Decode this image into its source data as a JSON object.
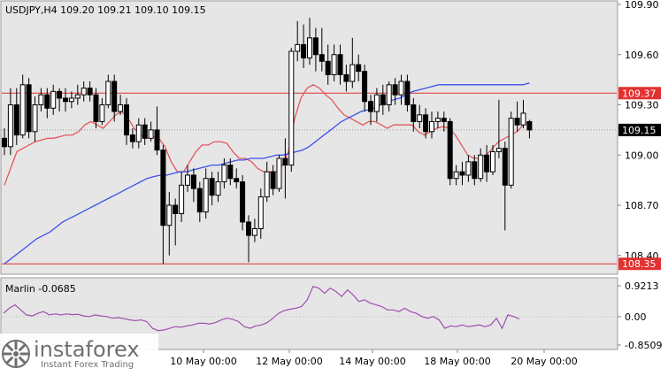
{
  "header": {
    "symbol_info": "USDJPY,H4  109.20 109.21 109.10 109.15"
  },
  "watermark": {
    "brand": "instaforex",
    "tagline": "Instant Forex Trading"
  },
  "colors": {
    "background": "#e6e6e6",
    "candle_body": "#000000",
    "level_line": "#e23131",
    "level_label_bg": "#e23131",
    "ma_fast": "#e2595d",
    "ma_slow": "#3d4fe8",
    "marlin": "#a34eb3",
    "price_label_bg": "#000000"
  },
  "chart_data": [
    {
      "type": "candlestick",
      "title": "USDJPY,H4",
      "ohlc_last": {
        "open": 109.2,
        "high": 109.21,
        "low": 109.1,
        "close": 109.15
      },
      "ylim": [
        108.33,
        109.9
      ],
      "y_ticks": [
        "109.90",
        "109.60",
        "109.30",
        "109.00",
        "108.70",
        "108.40"
      ],
      "x_ticks": [
        "10 May 00:00",
        "12 May 00:00",
        "14 May 00:00",
        "18 May 00:00",
        "20 May 00:00"
      ],
      "levels": [
        {
          "value": 109.37,
          "label": "109.37"
        },
        {
          "value": 108.35,
          "label": "108.35"
        }
      ],
      "current_price": {
        "value": 109.15,
        "label": "109.15"
      },
      "candles": [
        [
          109.1,
          109.05,
          109.16,
          109.0
        ],
        [
          109.05,
          109.3,
          109.4,
          109.0
        ],
        [
          109.3,
          109.12,
          109.4,
          109.06
        ],
        [
          109.12,
          109.42,
          109.48,
          109.1
        ],
        [
          109.42,
          109.14,
          109.46,
          109.1
        ],
        [
          109.14,
          109.3,
          109.35,
          109.08
        ],
        [
          109.3,
          109.36,
          109.4,
          109.26
        ],
        [
          109.36,
          109.28,
          109.4,
          109.22
        ],
        [
          109.28,
          109.38,
          109.42,
          109.24
        ],
        [
          109.38,
          109.34,
          109.4,
          109.26
        ],
        [
          109.34,
          109.32,
          109.4,
          109.26
        ],
        [
          109.32,
          109.34,
          109.38,
          109.28
        ],
        [
          109.34,
          109.36,
          109.42,
          109.3
        ],
        [
          109.36,
          109.4,
          109.44,
          109.32
        ],
        [
          109.4,
          109.36,
          109.44,
          109.32
        ],
        [
          109.36,
          109.2,
          109.4,
          109.16
        ],
        [
          109.2,
          109.3,
          109.34,
          109.18
        ],
        [
          109.3,
          109.44,
          109.48,
          109.28
        ],
        [
          109.44,
          109.26,
          109.48,
          109.2
        ],
        [
          109.26,
          109.3,
          109.36,
          109.24
        ],
        [
          109.3,
          109.12,
          109.34,
          109.06
        ],
        [
          109.12,
          109.08,
          109.16,
          109.04
        ],
        [
          109.08,
          109.18,
          109.22,
          109.04
        ],
        [
          109.18,
          109.1,
          109.22,
          109.06
        ],
        [
          109.1,
          109.15,
          109.2,
          109.08
        ],
        [
          109.15,
          109.03,
          109.29,
          109.0
        ],
        [
          109.03,
          108.58,
          109.06,
          108.35
        ],
        [
          108.58,
          108.7,
          108.78,
          108.4
        ],
        [
          108.7,
          108.65,
          108.74,
          108.46
        ],
        [
          108.65,
          108.82,
          108.9,
          108.6
        ],
        [
          108.82,
          108.88,
          108.94,
          108.78
        ],
        [
          108.88,
          108.8,
          108.92,
          108.72
        ],
        [
          108.8,
          108.66,
          108.84,
          108.6
        ],
        [
          108.66,
          108.86,
          108.92,
          108.62
        ],
        [
          108.86,
          108.76,
          108.9,
          108.7
        ],
        [
          108.76,
          108.84,
          108.9,
          108.72
        ],
        [
          108.84,
          108.94,
          108.98,
          108.8
        ],
        [
          108.94,
          108.86,
          108.98,
          108.82
        ],
        [
          108.86,
          108.84,
          108.92,
          108.8
        ],
        [
          108.84,
          108.6,
          108.88,
          108.55
        ],
        [
          108.6,
          108.52,
          108.64,
          108.36
        ],
        [
          108.52,
          108.56,
          108.62,
          108.48
        ],
        [
          108.56,
          108.75,
          108.8,
          108.5
        ],
        [
          108.75,
          108.9,
          108.96,
          108.72
        ],
        [
          108.9,
          108.8,
          108.94,
          108.76
        ],
        [
          108.8,
          108.98,
          109.0,
          108.78
        ],
        [
          108.98,
          108.94,
          109.1,
          108.74
        ],
        [
          108.94,
          109.62,
          109.64,
          108.9
        ],
        [
          109.62,
          109.66,
          109.8,
          109.56
        ],
        [
          109.66,
          109.58,
          109.78,
          109.52
        ],
        [
          109.58,
          109.7,
          109.82,
          109.54
        ],
        [
          109.7,
          109.6,
          109.76,
          109.5
        ],
        [
          109.6,
          109.56,
          109.76,
          109.5
        ],
        [
          109.56,
          109.48,
          109.66,
          109.42
        ],
        [
          109.48,
          109.6,
          109.66,
          109.44
        ],
        [
          109.6,
          109.48,
          109.66,
          109.42
        ],
        [
          109.48,
          109.44,
          109.54,
          109.38
        ],
        [
          109.44,
          109.54,
          109.7,
          109.4
        ],
        [
          109.54,
          109.5,
          109.6,
          109.44
        ],
        [
          109.5,
          109.32,
          109.54,
          109.26
        ],
        [
          109.32,
          109.26,
          109.36,
          109.18
        ],
        [
          109.26,
          109.36,
          109.4,
          109.2
        ],
        [
          109.36,
          109.3,
          109.42,
          109.24
        ],
        [
          109.3,
          109.42,
          109.44,
          109.26
        ],
        [
          109.42,
          109.36,
          109.46,
          109.3
        ],
        [
          109.36,
          109.44,
          109.48,
          109.3
        ],
        [
          109.44,
          109.3,
          109.48,
          109.26
        ],
        [
          109.3,
          109.2,
          109.34,
          109.14
        ],
        [
          109.2,
          109.24,
          109.3,
          109.16
        ],
        [
          109.24,
          109.14,
          109.28,
          109.1
        ],
        [
          109.14,
          109.2,
          109.26,
          109.1
        ],
        [
          109.2,
          109.22,
          109.26,
          109.16
        ],
        [
          109.22,
          109.2,
          109.26,
          109.14
        ],
        [
          109.2,
          108.86,
          109.22,
          108.82
        ],
        [
          108.86,
          108.9,
          108.94,
          108.82
        ],
        [
          108.9,
          108.88,
          108.96,
          108.82
        ],
        [
          108.88,
          108.96,
          109.0,
          108.84
        ],
        [
          108.96,
          108.86,
          109.0,
          108.82
        ],
        [
          108.86,
          109.0,
          109.04,
          108.84
        ],
        [
          109.0,
          108.9,
          109.06,
          108.84
        ],
        [
          108.9,
          109.02,
          109.06,
          108.88
        ],
        [
          109.02,
          109.04,
          109.33,
          108.98
        ],
        [
          109.04,
          108.82,
          109.08,
          108.55
        ],
        [
          108.82,
          109.22,
          109.26,
          108.8
        ],
        [
          109.22,
          109.18,
          109.32,
          109.14
        ],
        [
          109.18,
          109.25,
          109.33,
          109.16
        ],
        [
          109.2,
          109.15,
          109.21,
          109.1
        ]
      ],
      "series": [
        {
          "values": [
            108.82,
            108.92,
            109.02,
            109.04,
            109.06,
            109.08,
            109.09,
            109.1,
            109.1,
            109.11,
            109.12,
            109.12,
            109.14,
            109.18,
            109.2,
            109.18,
            109.16,
            109.2,
            109.24,
            109.26,
            109.22,
            109.16,
            109.12,
            109.1,
            109.11,
            109.1,
            109.05,
            108.96,
            108.9,
            108.9,
            108.96,
            109.02,
            109.06,
            109.06,
            109.08,
            109.08,
            109.07,
            109.02,
            108.98,
            108.98,
            108.96,
            108.92,
            108.9,
            108.9,
            108.9,
            108.94,
            109.02,
            109.22,
            109.34,
            109.4,
            109.42,
            109.4,
            109.36,
            109.33,
            109.28,
            109.24,
            109.22,
            109.2,
            109.18,
            109.2,
            109.2,
            109.18,
            109.16,
            109.18,
            109.18,
            109.18,
            109.18,
            109.14,
            109.12,
            109.14,
            109.16,
            109.17,
            109.16,
            109.12,
            109.06,
            109.0,
            108.98,
            108.98,
            109.0,
            109.04,
            109.08,
            109.1,
            109.12,
            109.14,
            109.18,
            109.2
          ]
        },
        {
          "values": [
            108.35,
            108.38,
            108.41,
            108.44,
            108.47,
            108.5,
            108.52,
            108.54,
            108.57,
            108.6,
            108.62,
            108.64,
            108.66,
            108.68,
            108.7,
            108.72,
            108.74,
            108.76,
            108.78,
            108.8,
            108.82,
            108.84,
            108.86,
            108.87,
            108.88,
            108.88,
            108.89,
            108.9,
            108.9,
            108.91,
            108.92,
            108.93,
            108.94,
            108.94,
            108.95,
            108.96,
            108.97,
            108.97,
            108.98,
            108.98,
            108.98,
            108.99,
            109.0,
            109.0,
            109.01,
            109.02,
            109.03,
            109.05,
            109.08,
            109.11,
            109.14,
            109.17,
            109.2,
            109.22,
            109.24,
            109.26,
            109.27,
            109.28,
            109.3,
            109.31,
            109.33,
            109.34,
            109.36,
            109.38,
            109.39,
            109.4,
            109.41,
            109.42,
            109.42,
            109.42,
            109.42,
            109.42,
            109.42,
            109.42,
            109.42,
            109.42,
            109.42,
            109.42,
            109.42,
            109.42,
            109.42,
            109.43
          ]
        }
      ]
    },
    {
      "type": "line",
      "title": "Marlin -0.0685",
      "ylim": [
        -0.8509,
        0.9213
      ],
      "y_ticks": [
        "0.9213",
        "0.00",
        "-0.8509"
      ],
      "series": [
        {
          "values": [
            0.1,
            0.25,
            0.35,
            0.2,
            0.05,
            0.02,
            0.1,
            0.15,
            0.05,
            0.08,
            0.05,
            0.08,
            0.06,
            0.07,
            0.02,
            0.0,
            0.05,
            0.02,
            0.0,
            -0.05,
            -0.03,
            -0.06,
            -0.1,
            -0.12,
            -0.1,
            -0.15,
            -0.35,
            -0.42,
            -0.4,
            -0.35,
            -0.3,
            -0.32,
            -0.28,
            -0.25,
            -0.2,
            -0.2,
            -0.22,
            -0.18,
            -0.1,
            -0.05,
            -0.08,
            -0.15,
            -0.3,
            -0.35,
            -0.28,
            -0.25,
            -0.18,
            -0.05,
            0.1,
            0.18,
            0.22,
            0.25,
            0.3,
            0.5,
            0.9,
            0.85,
            0.7,
            0.85,
            0.75,
            0.6,
            0.8,
            0.65,
            0.45,
            0.5,
            0.4,
            0.35,
            0.3,
            0.2,
            0.2,
            0.15,
            0.25,
            0.15,
            0.1,
            0.0,
            -0.05,
            0.0,
            -0.1,
            -0.35,
            -0.28,
            -0.3,
            -0.25,
            -0.3,
            -0.28,
            -0.25,
            -0.3,
            -0.25,
            -0.05,
            -0.35,
            0.05,
            0.0,
            -0.07
          ]
        }
      ]
    }
  ]
}
